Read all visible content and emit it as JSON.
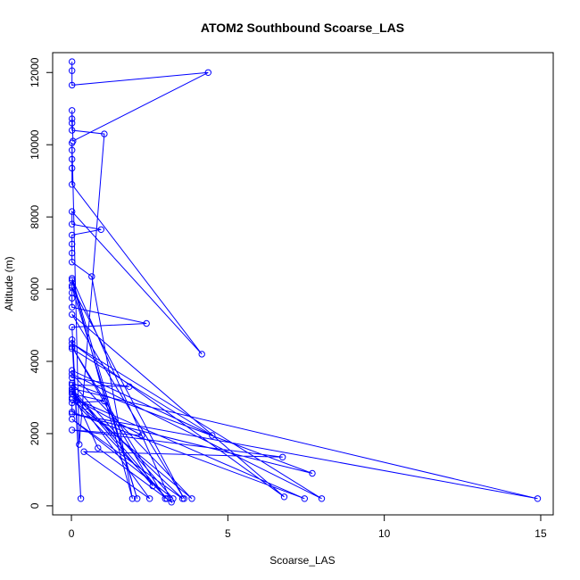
{
  "chart_data": {
    "type": "line",
    "title": "ATOM2 Southbound Scoarse_LAS",
    "xlabel": "Scoarse_LAS",
    "ylabel": "Altitude (m)",
    "xlim": [
      -0.6,
      15.4
    ],
    "ylim": [
      -250,
      12550
    ],
    "xticks": [
      0,
      5,
      10,
      15
    ],
    "yticks": [
      0,
      2000,
      4000,
      6000,
      8000,
      10000,
      12000
    ],
    "grid": false,
    "legend": "none",
    "color": "#0000ff",
    "marker": "open-circle",
    "series": [
      {
        "points": [
          [
            0.02,
            12300
          ],
          [
            0.02,
            12050
          ],
          [
            0.02,
            11650
          ],
          [
            4.37,
            12000
          ],
          [
            0.05,
            10100
          ],
          [
            0.02,
            10950
          ],
          [
            0.02,
            10720
          ],
          [
            0.02,
            10600
          ],
          [
            0.02,
            10400
          ],
          [
            1.05,
            10300
          ],
          [
            0.25,
            1700
          ],
          [
            0.02,
            10050
          ],
          [
            0.02,
            9850
          ],
          [
            0.02,
            9600
          ],
          [
            0.02,
            9350
          ],
          [
            0.02,
            8900
          ],
          [
            4.17,
            4200
          ],
          [
            0.02,
            8150
          ],
          [
            0.02,
            7800
          ],
          [
            0.95,
            7650
          ],
          [
            0.02,
            7500
          ],
          [
            0.02,
            7250
          ],
          [
            0.02,
            7000
          ],
          [
            0.02,
            6750
          ],
          [
            0.65,
            6350
          ],
          [
            1.95,
            200
          ],
          [
            0.02,
            6250
          ],
          [
            0.02,
            6100
          ],
          [
            0.02,
            5900
          ],
          [
            0.02,
            5750
          ],
          [
            0.02,
            5500
          ],
          [
            2.4,
            5050
          ],
          [
            0.02,
            4950
          ],
          [
            0.3,
            200
          ],
          [
            0.02,
            4600
          ],
          [
            0.02,
            4350
          ],
          [
            4.5,
            1950
          ],
          [
            0.02,
            3750
          ],
          [
            0.02,
            3550
          ],
          [
            1.85,
            3300
          ],
          [
            0.02,
            3350
          ],
          [
            0.02,
            3100
          ],
          [
            1.05,
            2900
          ],
          [
            0.02,
            2850
          ],
          [
            0.02,
            2600
          ],
          [
            7.45,
            200
          ],
          [
            0.02,
            3000
          ],
          [
            2.25,
            1950
          ],
          [
            0.02,
            2100
          ],
          [
            6.75,
            1350
          ],
          [
            0.4,
            1500
          ],
          [
            2.5,
            200
          ],
          [
            0.02,
            3150
          ],
          [
            0.45,
            2750
          ],
          [
            3.55,
            200
          ],
          [
            0.02,
            2400
          ],
          [
            3.25,
            200
          ],
          [
            0.02,
            3400
          ],
          [
            7.7,
            900
          ],
          [
            0.02,
            2550
          ],
          [
            14.9,
            200
          ],
          [
            0.02,
            3250
          ],
          [
            3.05,
            200
          ],
          [
            0.02,
            2950
          ],
          [
            3.85,
            200
          ],
          [
            0.02,
            3650
          ],
          [
            8.0,
            200
          ],
          [
            0.02,
            4500
          ],
          [
            6.8,
            250
          ],
          [
            0.02,
            5300
          ],
          [
            3.6,
            200
          ],
          [
            0.02,
            6050
          ],
          [
            2.1,
            200
          ],
          [
            0.02,
            6300
          ],
          [
            3.2,
            100
          ],
          [
            0.85,
            1600
          ],
          [
            0.02,
            3200
          ],
          [
            2.6,
            550
          ],
          [
            0.02,
            4400
          ],
          [
            3.0,
            200
          ]
        ]
      }
    ]
  }
}
